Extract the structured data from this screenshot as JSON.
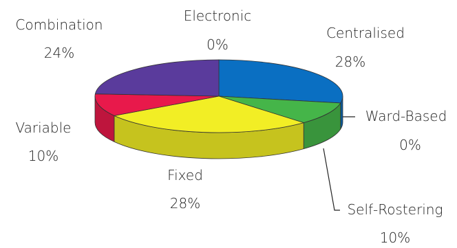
{
  "chart_data": {
    "type": "pie",
    "title": "",
    "style": "3d-exploded-pie",
    "slices": [
      {
        "label": "Centralised",
        "pct_label": "28%",
        "value": 28,
        "color": "#0a6fc2"
      },
      {
        "label": "Ward-Based",
        "pct_label": "0%",
        "value": 0,
        "color": "#1d4e8f"
      },
      {
        "label": "Self-Rostering",
        "pct_label": "10%",
        "value": 10,
        "color": "#45b549"
      },
      {
        "label": "Fixed",
        "pct_label": "28%",
        "value": 28,
        "color": "#f2ee25"
      },
      {
        "label": "Variable",
        "pct_label": "10%",
        "value": 10,
        "color": "#e8194b"
      },
      {
        "label": "Combination",
        "pct_label": "24%",
        "value": 24,
        "color": "#5a3b9c"
      },
      {
        "label": "Electronic",
        "pct_label": "0%",
        "value": 0,
        "color": "#888888"
      }
    ]
  }
}
